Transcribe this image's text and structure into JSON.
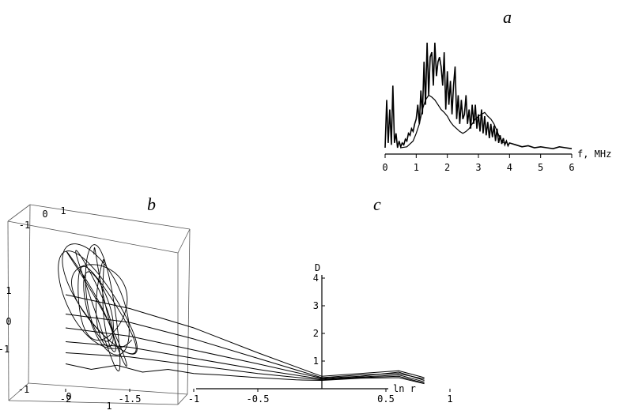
{
  "panels": {
    "a": "a",
    "b": "b",
    "c": "c"
  },
  "chart_data": [
    {
      "panel": "a",
      "type": "line",
      "xlabel": "f, MHz",
      "xlim": [
        0,
        6
      ],
      "x_ticks": [
        "0",
        "1",
        "2",
        "3",
        "4",
        "5",
        "6"
      ],
      "grid": false,
      "series": [
        {
          "x": [
            0.0,
            0.05,
            0.1,
            0.15,
            0.2,
            0.25,
            0.3,
            0.35,
            0.4,
            0.45,
            0.5,
            0.55,
            0.6,
            0.65,
            0.7,
            0.75,
            0.8,
            0.85,
            0.9,
            0.95,
            1.0,
            1.05,
            1.1,
            1.15,
            1.2,
            1.25,
            1.3,
            1.35,
            1.4,
            1.45,
            1.5,
            1.55,
            1.6,
            1.65,
            1.7,
            1.75,
            1.8,
            1.85,
            1.9,
            1.95,
            2.0,
            2.05,
            2.1,
            2.15,
            2.2,
            2.25,
            2.3,
            2.35,
            2.4,
            2.45,
            2.5,
            2.55,
            2.6,
            2.65,
            2.7,
            2.75,
            2.8,
            2.85,
            2.9,
            2.95,
            3.0,
            3.05,
            3.1,
            3.15,
            3.2,
            3.25,
            3.3,
            3.35,
            3.4,
            3.45,
            3.5,
            3.55,
            3.6,
            3.65,
            3.7,
            3.75,
            3.8,
            3.85,
            3.9,
            3.95,
            4.0,
            4.2,
            4.4,
            4.6,
            4.8,
            5.0,
            5.2,
            5.4,
            5.6,
            5.8,
            6.0
          ],
          "y": [
            0.05,
            0.55,
            0.1,
            0.45,
            0.08,
            0.7,
            0.1,
            0.2,
            0.05,
            0.12,
            0.06,
            0.1,
            0.08,
            0.14,
            0.12,
            0.2,
            0.18,
            0.25,
            0.22,
            0.3,
            0.35,
            0.5,
            0.3,
            0.65,
            0.4,
            0.95,
            0.5,
            1.15,
            0.6,
            1.0,
            1.05,
            0.7,
            1.15,
            0.8,
            0.95,
            1.0,
            0.9,
            0.7,
            1.05,
            0.45,
            0.85,
            0.5,
            0.75,
            0.4,
            0.7,
            0.9,
            0.35,
            0.6,
            0.3,
            0.55,
            0.35,
            0.4,
            0.6,
            0.3,
            0.45,
            0.25,
            0.5,
            0.3,
            0.5,
            0.25,
            0.4,
            0.22,
            0.45,
            0.2,
            0.38,
            0.18,
            0.32,
            0.15,
            0.3,
            0.16,
            0.28,
            0.12,
            0.25,
            0.1,
            0.18,
            0.09,
            0.15,
            0.08,
            0.12,
            0.07,
            0.1,
            0.08,
            0.06,
            0.07,
            0.05,
            0.06,
            0.05,
            0.04,
            0.06,
            0.05,
            0.04
          ]
        },
        {
          "x": [
            0.5,
            0.7,
            0.9,
            1.0,
            1.1,
            1.2,
            1.3,
            1.4,
            1.5,
            1.6,
            1.7,
            1.8,
            1.9,
            2.0,
            2.1,
            2.2,
            2.3,
            2.4,
            2.5,
            2.6,
            2.7,
            2.8,
            2.9,
            3.0,
            3.1,
            3.2,
            3.3,
            3.4,
            3.5,
            3.6,
            3.7,
            3.8
          ],
          "y": [
            0.05,
            0.06,
            0.12,
            0.2,
            0.3,
            0.45,
            0.55,
            0.6,
            0.58,
            0.55,
            0.5,
            0.45,
            0.42,
            0.38,
            0.32,
            0.28,
            0.25,
            0.22,
            0.2,
            0.22,
            0.25,
            0.3,
            0.35,
            0.38,
            0.4,
            0.42,
            0.38,
            0.35,
            0.3,
            0.22,
            0.15,
            0.1
          ]
        }
      ]
    },
    {
      "panel": "b",
      "type": "line",
      "subtype": "3d-attractor",
      "tick_labels": [
        "1",
        "0",
        "-1",
        "1",
        "0",
        "-1",
        "-1",
        "0",
        "1"
      ],
      "series": [
        {
          "t_range": [
            0,
            60
          ],
          "samples": 900
        }
      ]
    },
    {
      "panel": "c",
      "type": "line",
      "xlabel": "ln r",
      "ylabel": "D",
      "xlim": [
        -2.4,
        1.0
      ],
      "ylim": [
        0,
        4.2
      ],
      "x_ticks": [
        "-2",
        "-1.5",
        "-1",
        "-0.5",
        "0.5",
        "1"
      ],
      "y_ticks": [
        "1",
        "2",
        "3",
        "4"
      ],
      "grid": false,
      "series": [
        {
          "x": [
            -2.0,
            -1.5,
            -1.0,
            -0.5,
            0.0,
            0.3,
            0.6,
            0.8
          ],
          "y": [
            3.4,
            2.9,
            2.2,
            1.3,
            0.45,
            0.55,
            0.65,
            0.4
          ]
        },
        {
          "x": [
            -2.0,
            -1.5,
            -1.0,
            -0.5,
            0.0,
            0.3,
            0.6,
            0.8
          ],
          "y": [
            2.7,
            2.4,
            1.8,
            1.1,
            0.4,
            0.5,
            0.55,
            0.35
          ]
        },
        {
          "x": [
            -2.0,
            -1.5,
            -1.0,
            -0.5,
            0.0,
            0.3,
            0.6,
            0.8
          ],
          "y": [
            2.2,
            1.9,
            1.4,
            0.9,
            0.38,
            0.45,
            0.6,
            0.3
          ]
        },
        {
          "x": [
            -2.0,
            -1.5,
            -1.0,
            -0.5,
            0.0,
            0.3,
            0.6,
            0.8
          ],
          "y": [
            1.7,
            1.5,
            1.1,
            0.7,
            0.35,
            0.42,
            0.5,
            0.25
          ]
        },
        {
          "x": [
            -2.0,
            -1.5,
            -1.0,
            -0.5,
            0.0,
            0.3,
            0.6,
            0.8
          ],
          "y": [
            1.3,
            1.15,
            0.85,
            0.55,
            0.32,
            0.4,
            0.45,
            0.2
          ]
        },
        {
          "x": [
            -2.0,
            -1.8,
            -1.6,
            -1.4,
            -1.2,
            -1.0,
            -0.8,
            -0.5,
            -0.2,
            0.0,
            0.3,
            0.6,
            0.8
          ],
          "y": [
            0.9,
            0.7,
            0.85,
            0.6,
            0.7,
            0.55,
            0.5,
            0.4,
            0.32,
            0.3,
            0.38,
            0.4,
            0.18
          ]
        }
      ]
    }
  ]
}
